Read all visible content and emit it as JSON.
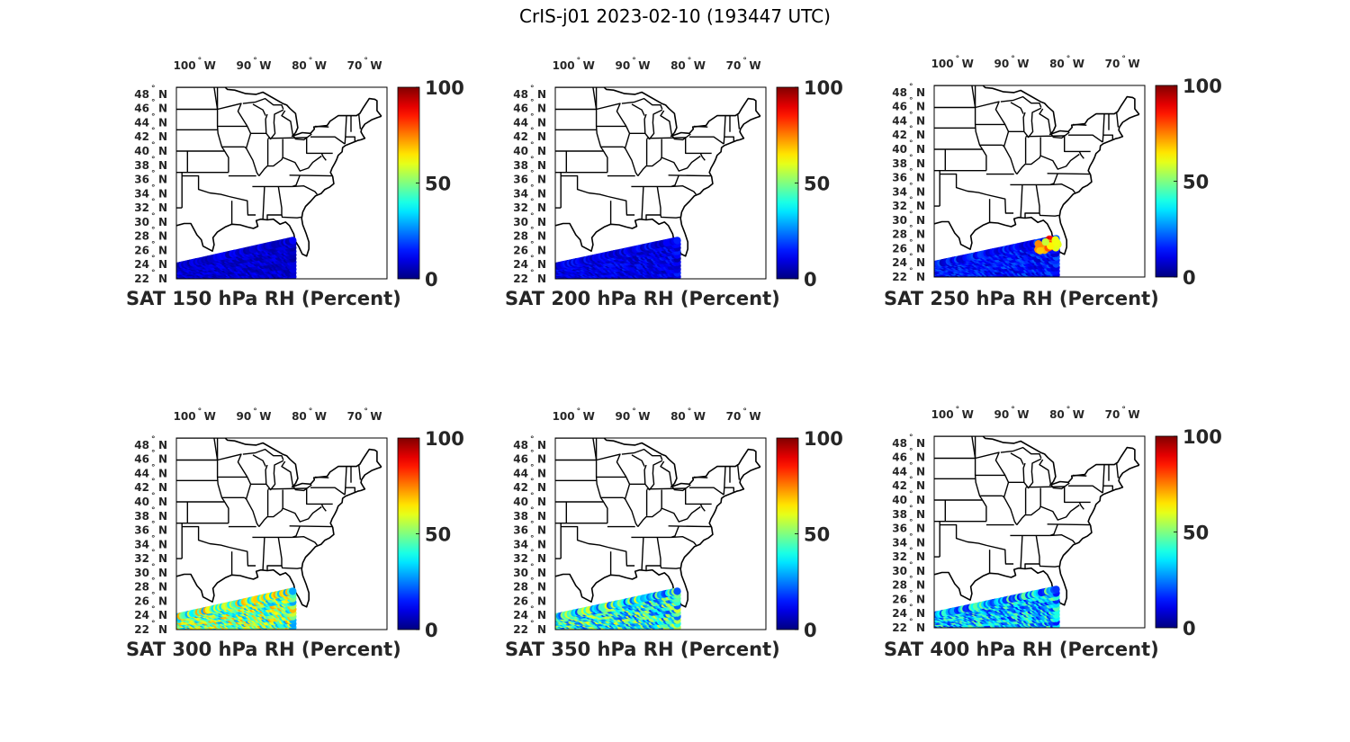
{
  "title": "CrIS-j01 2023-02-10 (193447 UTC)",
  "lon_labels": [
    {
      "deg": "100",
      "hemi": "W",
      "lon": -100
    },
    {
      "deg": "90",
      "hemi": "W",
      "lon": -90
    },
    {
      "deg": "80",
      "hemi": "W",
      "lon": -80
    },
    {
      "deg": "70",
      "hemi": "W",
      "lon": -70
    }
  ],
  "lat_labels": [
    {
      "deg": "48",
      "hemi": "N",
      "lat": 48
    },
    {
      "deg": "46",
      "hemi": "N",
      "lat": 46
    },
    {
      "deg": "44",
      "hemi": "N",
      "lat": 44
    },
    {
      "deg": "42",
      "hemi": "N",
      "lat": 42
    },
    {
      "deg": "40",
      "hemi": "N",
      "lat": 40
    },
    {
      "deg": "38",
      "hemi": "N",
      "lat": 38
    },
    {
      "deg": "36",
      "hemi": "N",
      "lat": 36
    },
    {
      "deg": "34",
      "hemi": "N",
      "lat": 34
    },
    {
      "deg": "32",
      "hemi": "N",
      "lat": 32
    },
    {
      "deg": "30",
      "hemi": "N",
      "lat": 30
    },
    {
      "deg": "28",
      "hemi": "N",
      "lat": 28
    },
    {
      "deg": "26",
      "hemi": "N",
      "lat": 26
    },
    {
      "deg": "24",
      "hemi": "N",
      "lat": 24
    },
    {
      "deg": "22",
      "hemi": "N",
      "lat": 22
    }
  ],
  "colorbar": {
    "min": 0,
    "max": 100,
    "ticks": [
      "0",
      "50",
      "100"
    ],
    "colormap": "jet"
  },
  "map_extent": {
    "lon": [
      -104,
      -66
    ],
    "lat": [
      22,
      49
    ]
  },
  "panels": [
    {
      "title": "SAT 150 hPa RH (Percent)",
      "level_hpa": 150,
      "rh_mean": 8,
      "rh_spread": 5,
      "swath_east_lon": -83,
      "hot_spots": []
    },
    {
      "title": "SAT 200 hPa RH (Percent)",
      "level_hpa": 200,
      "rh_mean": 10,
      "rh_spread": 6,
      "swath_east_lon": -82,
      "hot_spots": []
    },
    {
      "title": "SAT 250 hPa RH (Percent)",
      "level_hpa": 250,
      "rh_mean": 14,
      "rh_spread": 8,
      "swath_east_lon": -82,
      "hot_spots": [
        {
          "lon": -83.5,
          "lat": 26.8,
          "rh": 88
        },
        {
          "lon": -84.2,
          "lat": 26.3,
          "rh": 75
        },
        {
          "lon": -82.8,
          "lat": 26.6,
          "rh": 62
        }
      ]
    },
    {
      "title": "SAT 300 hPa RH (Percent)",
      "level_hpa": 300,
      "rh_mean": 50,
      "rh_spread": 22,
      "swath_east_lon": -83,
      "hot_spots": []
    },
    {
      "title": "SAT 350 hPa RH (Percent)",
      "level_hpa": 350,
      "rh_mean": 40,
      "rh_spread": 22,
      "swath_east_lon": -82,
      "hot_spots": []
    },
    {
      "title": "SAT 400 hPa RH (Percent)",
      "level_hpa": 400,
      "rh_mean": 32,
      "rh_spread": 18,
      "swath_east_lon": -82,
      "hot_spots": []
    }
  ]
}
